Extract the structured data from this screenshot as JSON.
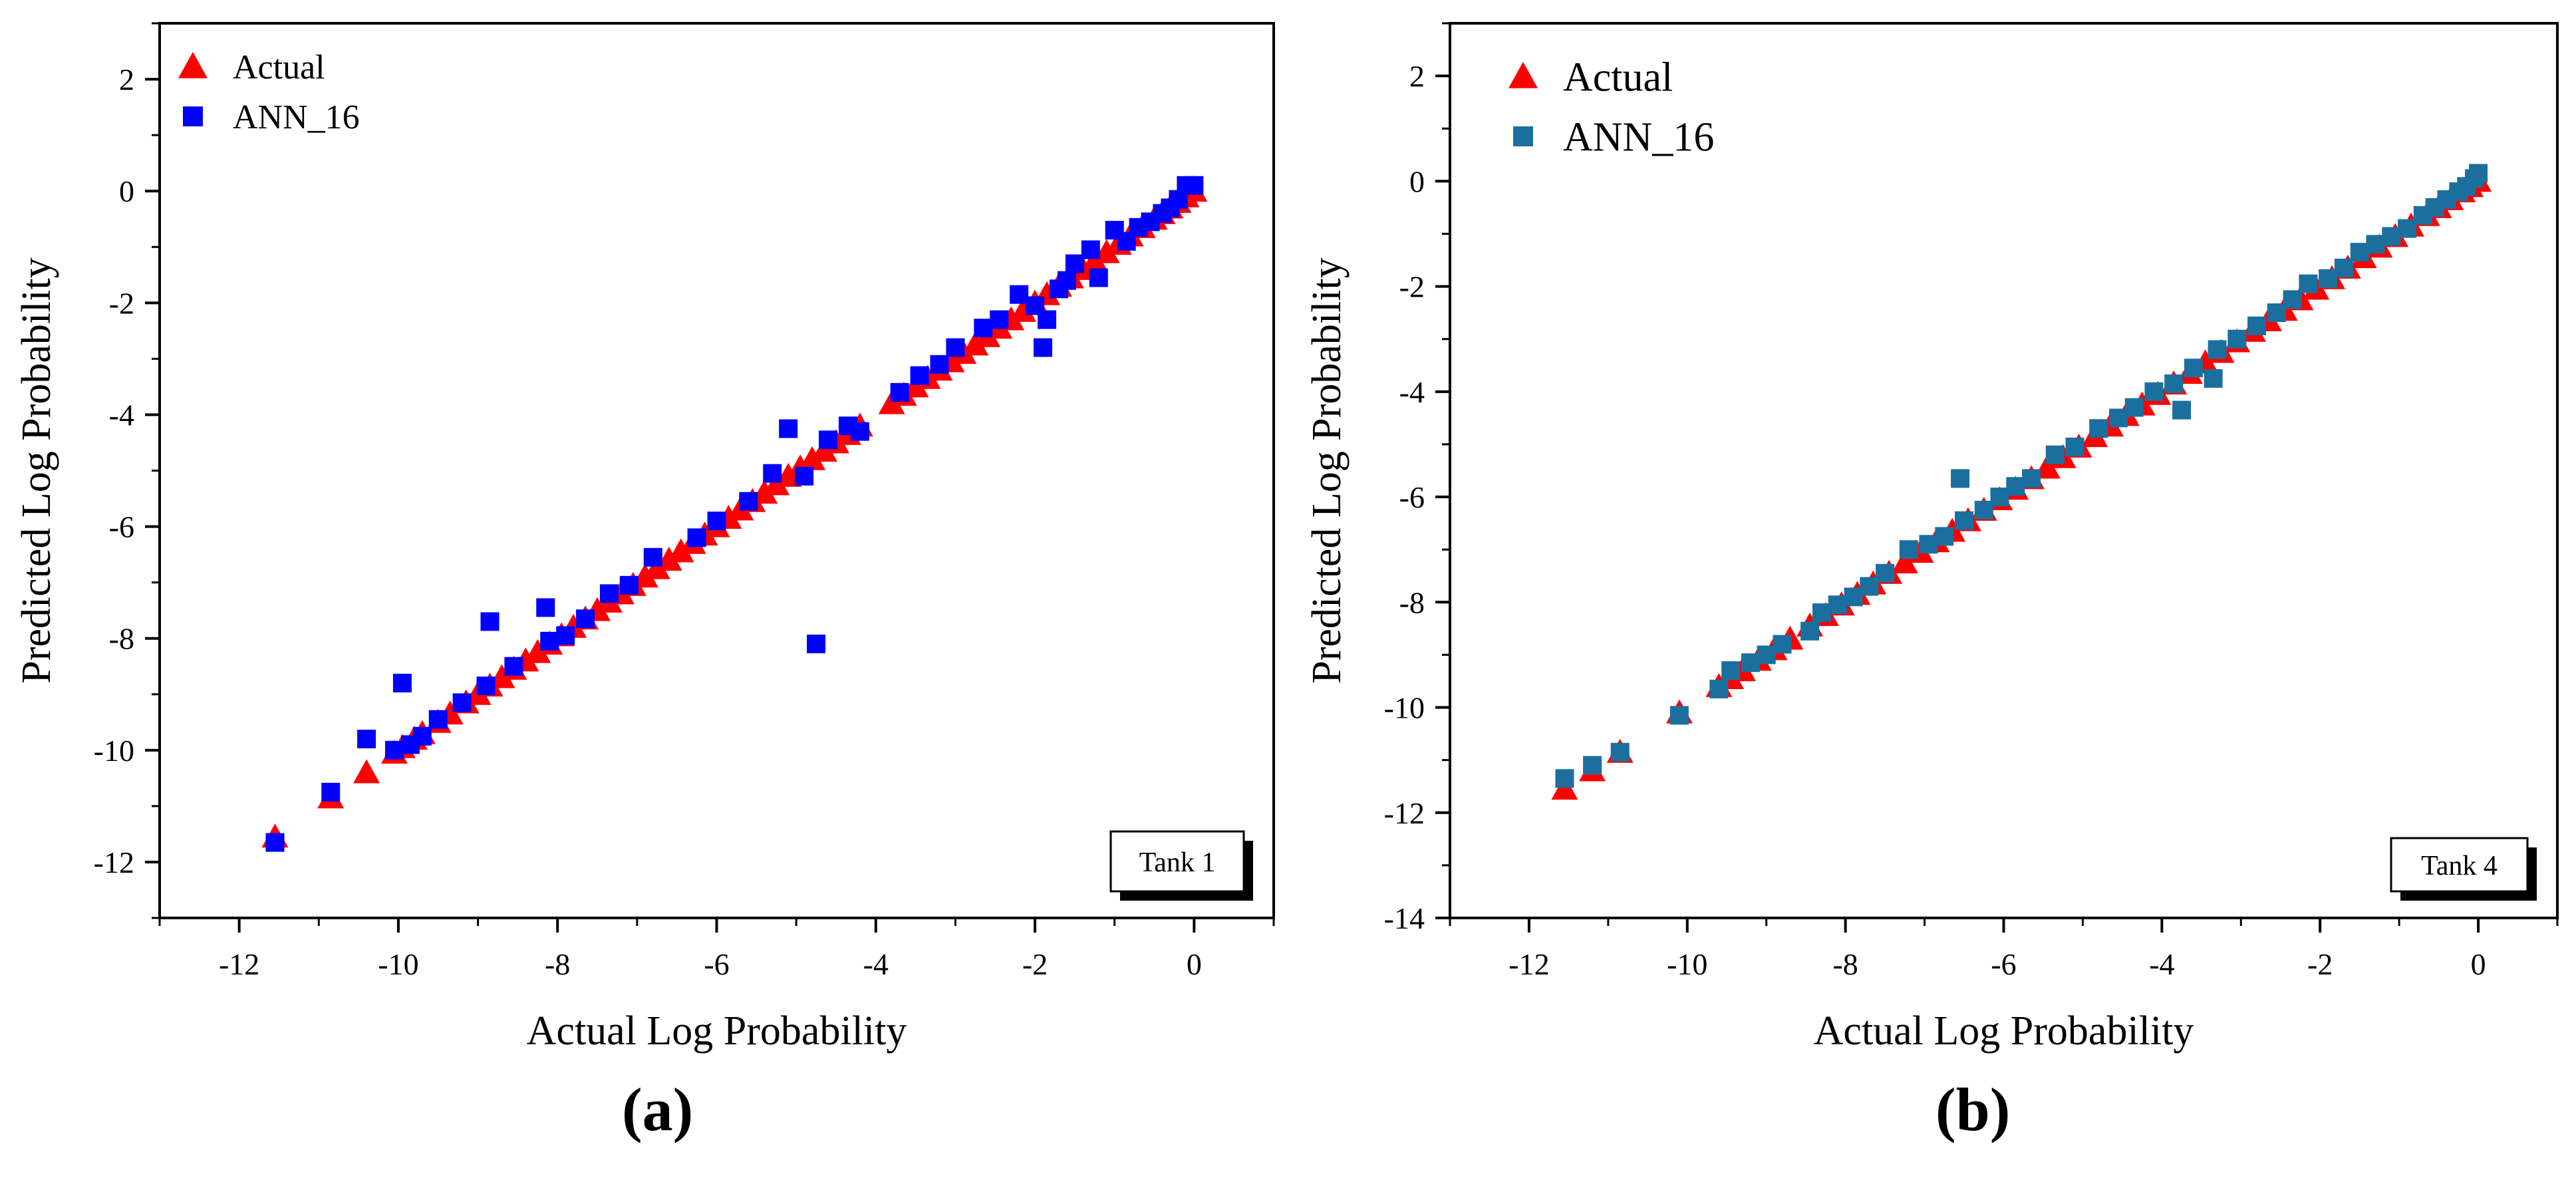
{
  "chart_data": [
    {
      "panel_label": "(a)",
      "type": "scatter",
      "xlabel": "Actual Log Probability",
      "ylabel": "Predicted Log Probability",
      "xlim": [
        -13,
        1
      ],
      "ylim": [
        -13,
        3
      ],
      "xticks": [
        -12,
        -10,
        -8,
        -6,
        -4,
        -2,
        0
      ],
      "yticks": [
        -12,
        -10,
        -8,
        -6,
        -4,
        -2,
        0,
        2
      ],
      "legend_position": "top-left",
      "tag": "Tank 1",
      "series": [
        {
          "name": "Actual",
          "marker": "triangle",
          "color": "#ff0000",
          "points": [
            [
              -11.55,
              -11.55
            ],
            [
              -10.85,
              -10.85
            ],
            [
              -10.4,
              -10.4
            ],
            [
              -10.05,
              -10.05
            ],
            [
              -9.95,
              -9.95
            ],
            [
              -9.8,
              -9.8
            ],
            [
              -9.7,
              -9.7
            ],
            [
              -9.5,
              -9.5
            ],
            [
              -9.35,
              -9.35
            ],
            [
              -9.15,
              -9.15
            ],
            [
              -9.0,
              -9.0
            ],
            [
              -8.85,
              -8.85
            ],
            [
              -8.7,
              -8.7
            ],
            [
              -8.55,
              -8.55
            ],
            [
              -8.4,
              -8.4
            ],
            [
              -8.25,
              -8.25
            ],
            [
              -8.1,
              -8.1
            ],
            [
              -7.95,
              -7.95
            ],
            [
              -7.8,
              -7.8
            ],
            [
              -7.65,
              -7.65
            ],
            [
              -7.5,
              -7.5
            ],
            [
              -7.35,
              -7.35
            ],
            [
              -7.2,
              -7.2
            ],
            [
              -7.05,
              -7.05
            ],
            [
              -6.9,
              -6.9
            ],
            [
              -6.75,
              -6.75
            ],
            [
              -6.6,
              -6.6
            ],
            [
              -6.45,
              -6.45
            ],
            [
              -6.3,
              -6.3
            ],
            [
              -6.15,
              -6.15
            ],
            [
              -6.0,
              -6.0
            ],
            [
              -5.85,
              -5.85
            ],
            [
              -5.7,
              -5.7
            ],
            [
              -5.55,
              -5.55
            ],
            [
              -5.4,
              -5.4
            ],
            [
              -5.25,
              -5.25
            ],
            [
              -5.1,
              -5.1
            ],
            [
              -4.95,
              -4.95
            ],
            [
              -4.8,
              -4.8
            ],
            [
              -4.65,
              -4.65
            ],
            [
              -4.5,
              -4.5
            ],
            [
              -4.35,
              -4.35
            ],
            [
              -4.2,
              -4.2
            ],
            [
              -3.8,
              -3.8
            ],
            [
              -3.65,
              -3.65
            ],
            [
              -3.5,
              -3.5
            ],
            [
              -3.35,
              -3.35
            ],
            [
              -3.2,
              -3.2
            ],
            [
              -3.05,
              -3.05
            ],
            [
              -2.9,
              -2.9
            ],
            [
              -2.75,
              -2.75
            ],
            [
              -2.6,
              -2.6
            ],
            [
              -2.45,
              -2.45
            ],
            [
              -2.3,
              -2.3
            ],
            [
              -2.15,
              -2.15
            ],
            [
              -2.0,
              -2.0
            ],
            [
              -1.85,
              -1.85
            ],
            [
              -1.7,
              -1.7
            ],
            [
              -1.55,
              -1.55
            ],
            [
              -1.4,
              -1.4
            ],
            [
              -1.25,
              -1.25
            ],
            [
              -1.1,
              -1.1
            ],
            [
              -0.95,
              -0.95
            ],
            [
              -0.8,
              -0.8
            ],
            [
              -0.65,
              -0.65
            ],
            [
              -0.5,
              -0.5
            ],
            [
              -0.4,
              -0.4
            ],
            [
              -0.3,
              -0.3
            ],
            [
              -0.2,
              -0.2
            ],
            [
              -0.1,
              -0.1
            ],
            [
              0.0,
              0.0
            ]
          ]
        },
        {
          "name": "ANN_16",
          "marker": "square",
          "color": "#0000ff",
          "points": [
            [
              -11.55,
              -11.65
            ],
            [
              -10.85,
              -10.75
            ],
            [
              -10.4,
              -9.8
            ],
            [
              -10.05,
              -10.0
            ],
            [
              -9.95,
              -8.8
            ],
            [
              -9.85,
              -9.9
            ],
            [
              -9.7,
              -9.75
            ],
            [
              -9.5,
              -9.45
            ],
            [
              -9.2,
              -9.15
            ],
            [
              -8.85,
              -7.7
            ],
            [
              -8.9,
              -8.85
            ],
            [
              -8.55,
              -8.5
            ],
            [
              -8.15,
              -7.45
            ],
            [
              -8.1,
              -8.05
            ],
            [
              -7.9,
              -7.95
            ],
            [
              -7.65,
              -7.65
            ],
            [
              -7.35,
              -7.2
            ],
            [
              -7.1,
              -7.05
            ],
            [
              -6.8,
              -6.55
            ],
            [
              -6.25,
              -6.2
            ],
            [
              -6.0,
              -5.9
            ],
            [
              -5.6,
              -5.55
            ],
            [
              -5.3,
              -5.05
            ],
            [
              -5.1,
              -4.25
            ],
            [
              -4.9,
              -5.1
            ],
            [
              -4.75,
              -8.1
            ],
            [
              -4.6,
              -4.45
            ],
            [
              -4.35,
              -4.2
            ],
            [
              -4.2,
              -4.3
            ],
            [
              -3.7,
              -3.6
            ],
            [
              -3.45,
              -3.3
            ],
            [
              -3.2,
              -3.1
            ],
            [
              -3.0,
              -2.8
            ],
            [
              -2.65,
              -2.45
            ],
            [
              -2.45,
              -2.3
            ],
            [
              -2.2,
              -1.85
            ],
            [
              -2.0,
              -2.05
            ],
            [
              -1.9,
              -2.8
            ],
            [
              -1.85,
              -2.3
            ],
            [
              -1.7,
              -1.75
            ],
            [
              -1.6,
              -1.6
            ],
            [
              -1.5,
              -1.3
            ],
            [
              -1.3,
              -1.05
            ],
            [
              -1.2,
              -1.55
            ],
            [
              -1.0,
              -0.7
            ],
            [
              -0.85,
              -0.9
            ],
            [
              -0.7,
              -0.65
            ],
            [
              -0.55,
              -0.55
            ],
            [
              -0.4,
              -0.4
            ],
            [
              -0.3,
              -0.3
            ],
            [
              -0.2,
              -0.15
            ],
            [
              -0.1,
              0.1
            ],
            [
              0.0,
              0.1
            ]
          ]
        }
      ]
    },
    {
      "panel_label": "(b)",
      "type": "scatter",
      "xlabel": "Actual Log Probability",
      "ylabel": "Predicted Log Probability",
      "xlim": [
        -13,
        1
      ],
      "ylim": [
        -14,
        3
      ],
      "xticks": [
        -12,
        -10,
        -8,
        -6,
        -4,
        -2,
        0
      ],
      "yticks": [
        -14,
        -12,
        -10,
        -8,
        -6,
        -4,
        -2,
        0,
        2
      ],
      "legend_position": "top-left",
      "tag": "Tank 4",
      "series": [
        {
          "name": "Actual",
          "marker": "triangle",
          "color": "#ff0000",
          "points": [
            [
              -11.55,
              -11.55
            ],
            [
              -11.2,
              -11.2
            ],
            [
              -10.85,
              -10.85
            ],
            [
              -10.1,
              -10.1
            ],
            [
              -9.6,
              -9.6
            ],
            [
              -9.45,
              -9.45
            ],
            [
              -9.3,
              -9.3
            ],
            [
              -9.1,
              -9.1
            ],
            [
              -8.9,
              -8.9
            ],
            [
              -8.7,
              -8.7
            ],
            [
              -8.45,
              -8.45
            ],
            [
              -8.25,
              -8.25
            ],
            [
              -8.05,
              -8.05
            ],
            [
              -7.85,
              -7.85
            ],
            [
              -7.65,
              -7.65
            ],
            [
              -7.45,
              -7.45
            ],
            [
              -7.25,
              -7.25
            ],
            [
              -7.05,
              -7.05
            ],
            [
              -6.85,
              -6.85
            ],
            [
              -6.65,
              -6.65
            ],
            [
              -6.45,
              -6.45
            ],
            [
              -6.25,
              -6.25
            ],
            [
              -6.05,
              -6.05
            ],
            [
              -5.85,
              -5.85
            ],
            [
              -5.65,
              -5.65
            ],
            [
              -5.45,
              -5.45
            ],
            [
              -5.25,
              -5.25
            ],
            [
              -5.05,
              -5.05
            ],
            [
              -4.85,
              -4.85
            ],
            [
              -4.65,
              -4.65
            ],
            [
              -4.45,
              -4.45
            ],
            [
              -4.25,
              -4.25
            ],
            [
              -4.05,
              -4.05
            ],
            [
              -3.85,
              -3.85
            ],
            [
              -3.65,
              -3.65
            ],
            [
              -3.45,
              -3.45
            ],
            [
              -3.25,
              -3.25
            ],
            [
              -3.05,
              -3.05
            ],
            [
              -2.85,
              -2.85
            ],
            [
              -2.65,
              -2.65
            ],
            [
              -2.45,
              -2.45
            ],
            [
              -2.25,
              -2.25
            ],
            [
              -2.05,
              -2.05
            ],
            [
              -1.85,
              -1.85
            ],
            [
              -1.65,
              -1.65
            ],
            [
              -1.45,
              -1.45
            ],
            [
              -1.25,
              -1.25
            ],
            [
              -1.05,
              -1.05
            ],
            [
              -0.85,
              -0.85
            ],
            [
              -0.65,
              -0.65
            ],
            [
              -0.5,
              -0.5
            ],
            [
              -0.35,
              -0.35
            ],
            [
              -0.2,
              -0.2
            ],
            [
              -0.1,
              -0.1
            ],
            [
              0.0,
              0.0
            ]
          ]
        },
        {
          "name": "ANN_16",
          "marker": "square",
          "color": "#1b6f9e",
          "points": [
            [
              -11.55,
              -11.35
            ],
            [
              -11.2,
              -11.1
            ],
            [
              -10.85,
              -10.85
            ],
            [
              -10.1,
              -10.15
            ],
            [
              -9.6,
              -9.65
            ],
            [
              -9.45,
              -9.3
            ],
            [
              -9.2,
              -9.15
            ],
            [
              -9.0,
              -9.0
            ],
            [
              -8.8,
              -8.8
            ],
            [
              -8.45,
              -8.55
            ],
            [
              -8.3,
              -8.2
            ],
            [
              -8.1,
              -8.05
            ],
            [
              -7.9,
              -7.9
            ],
            [
              -7.7,
              -7.7
            ],
            [
              -7.5,
              -7.45
            ],
            [
              -7.2,
              -7.0
            ],
            [
              -6.95,
              -6.9
            ],
            [
              -6.75,
              -6.75
            ],
            [
              -6.55,
              -5.65
            ],
            [
              -6.5,
              -6.45
            ],
            [
              -6.25,
              -6.25
            ],
            [
              -6.05,
              -6.0
            ],
            [
              -5.85,
              -5.8
            ],
            [
              -5.65,
              -5.65
            ],
            [
              -5.35,
              -5.2
            ],
            [
              -5.1,
              -5.05
            ],
            [
              -4.8,
              -4.7
            ],
            [
              -4.55,
              -4.5
            ],
            [
              -4.35,
              -4.3
            ],
            [
              -4.1,
              -4.0
            ],
            [
              -3.85,
              -3.85
            ],
            [
              -3.75,
              -4.35
            ],
            [
              -3.6,
              -3.55
            ],
            [
              -3.35,
              -3.75
            ],
            [
              -3.3,
              -3.2
            ],
            [
              -3.05,
              -3.0
            ],
            [
              -2.8,
              -2.75
            ],
            [
              -2.55,
              -2.5
            ],
            [
              -2.35,
              -2.25
            ],
            [
              -2.15,
              -1.95
            ],
            [
              -1.9,
              -1.85
            ],
            [
              -1.7,
              -1.65
            ],
            [
              -1.5,
              -1.35
            ],
            [
              -1.3,
              -1.2
            ],
            [
              -1.1,
              -1.05
            ],
            [
              -0.9,
              -0.9
            ],
            [
              -0.7,
              -0.65
            ],
            [
              -0.55,
              -0.5
            ],
            [
              -0.4,
              -0.35
            ],
            [
              -0.25,
              -0.2
            ],
            [
              -0.15,
              -0.1
            ],
            [
              -0.05,
              0.05
            ],
            [
              0.0,
              0.15
            ]
          ]
        }
      ]
    }
  ]
}
